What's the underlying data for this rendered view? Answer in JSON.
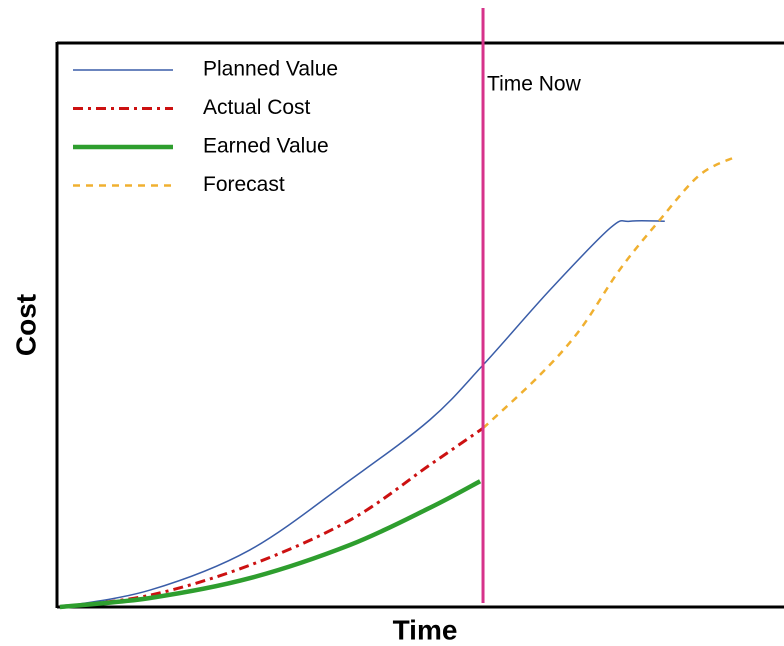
{
  "chart_data": {
    "type": "line",
    "xlabel": "Time",
    "ylabel": "Cost",
    "xlim": [
      0,
      100
    ],
    "ylim": [
      0,
      100
    ],
    "legend": "upper left",
    "time_now": {
      "label": "Time Now",
      "x": 58.6,
      "color": "#d6338a"
    },
    "series": [
      {
        "name": "Planned Value",
        "color": "#3a5da8",
        "style": "solid",
        "width": 1.5,
        "x": [
          0.4,
          12.8,
          26.5,
          40.3,
          51.3,
          58.6,
          67.8,
          76.1,
          78.8,
          83.6
        ],
        "values": [
          0,
          3.0,
          10.1,
          22.5,
          33.2,
          42.9,
          56.2,
          67.2,
          68.4,
          68.4
        ]
      },
      {
        "name": "Actual Cost",
        "color": "#cc1111",
        "style": "dashdot",
        "width": 3,
        "x": [
          0.4,
          12.8,
          26.5,
          40.3,
          51.3,
          58.6
        ],
        "values": [
          0,
          2.1,
          7.4,
          15.4,
          25.2,
          31.7
        ]
      },
      {
        "name": "Earned Value",
        "color": "#2e9e2e",
        "style": "solid",
        "width": 4.5,
        "x": [
          0.4,
          12.8,
          26.5,
          40.3,
          51.3,
          58.2
        ],
        "values": [
          0,
          1.6,
          5.1,
          11.0,
          17.6,
          22.3
        ]
      },
      {
        "name": "Forecast",
        "color": "#f0b030",
        "style": "dashed",
        "width": 2.5,
        "x": [
          58.6,
          66.4,
          71.9,
          77.4,
          82.9,
          88.4,
          93.3
        ],
        "values": [
          31.7,
          41.1,
          49.1,
          59.8,
          68.6,
          76.6,
          79.8
        ]
      }
    ]
  }
}
